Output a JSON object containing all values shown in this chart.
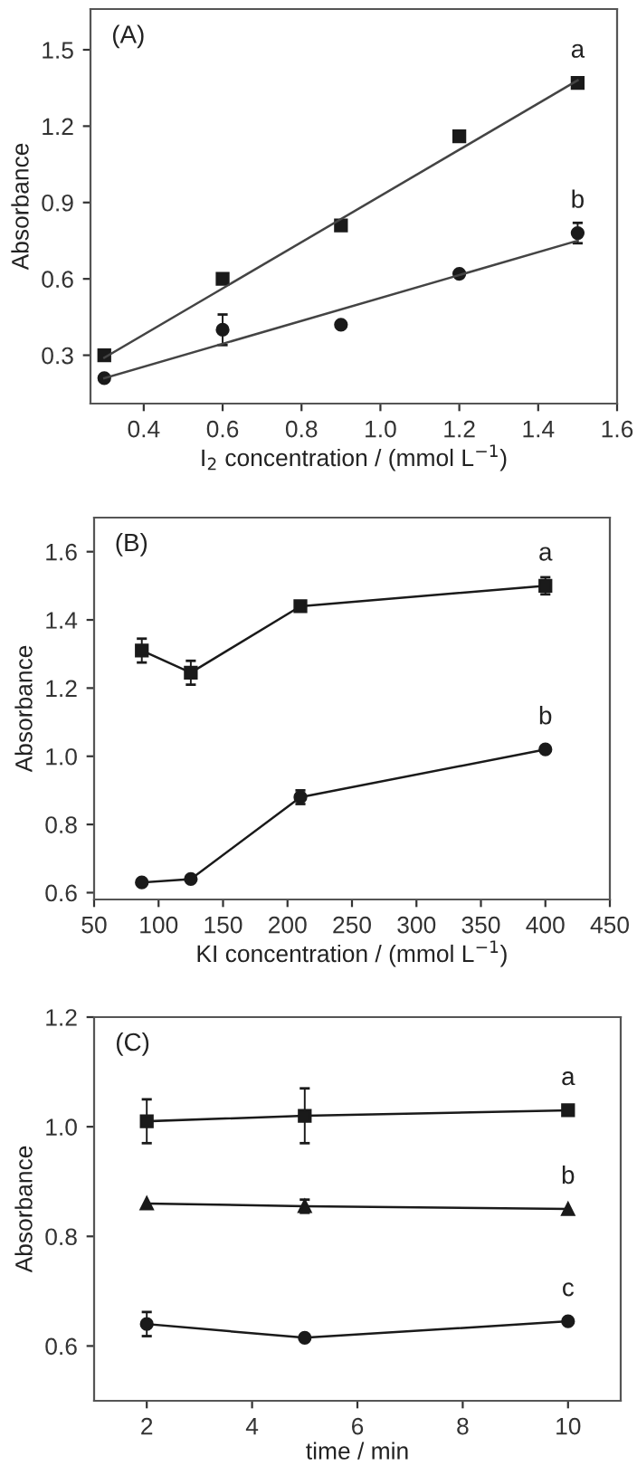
{
  "chart_data": [
    {
      "type": "scatter",
      "annotations": [
        "(A)"
      ],
      "xlabel": "I$_{2}$ concentration / (mmol L$^{−1}$)",
      "ylabel": "Absorbance",
      "xlim": [
        0.265,
        1.6
      ],
      "ylim": [
        0.11,
        1.66
      ],
      "xticks": [
        0.4,
        0.6,
        0.8,
        {
          "value": 1.0,
          "label": "1.0"
        },
        1.2,
        1.4,
        1.6
      ],
      "yticks": [
        0.3,
        0.6,
        0.9,
        1.2,
        1.5
      ],
      "series": [
        {
          "name": "a",
          "type": "scatter",
          "marker": "square",
          "color": "#1a1a1a",
          "x": [
            0.3,
            0.6,
            0.9,
            1.2,
            1.5
          ],
          "values": [
            0.3,
            0.6,
            0.81,
            1.16,
            1.37
          ],
          "errors": [
            null,
            0.01,
            null,
            null,
            null
          ]
        },
        {
          "name": "b",
          "type": "scatter",
          "marker": "circle",
          "color": "#1a1a1a",
          "x": [
            0.3,
            0.6,
            0.9,
            1.2,
            1.5
          ],
          "values": [
            0.21,
            0.4,
            0.42,
            0.62,
            0.78
          ],
          "errors": [
            null,
            0.06,
            null,
            null,
            0.04
          ]
        },
        {
          "type": "line",
          "marker": "none",
          "color": "#444444",
          "x": [
            0.3,
            1.5
          ],
          "values": [
            0.29,
            1.38
          ]
        },
        {
          "type": "line",
          "marker": "none",
          "color": "#444444",
          "x": [
            0.3,
            1.5
          ],
          "values": [
            0.21,
            0.75
          ]
        }
      ]
    },
    {
      "type": "line",
      "annotations": [
        "(B)"
      ],
      "xlabel": "KI concentration / (mmol L$^{−1}$)",
      "ylabel": "Absorbance",
      "xlim": [
        50,
        450
      ],
      "ylim": [
        0.58,
        1.7
      ],
      "xticks": [
        50,
        100,
        150,
        200,
        250,
        300,
        350,
        400,
        450
      ],
      "yticks": [
        0.6,
        0.8,
        {
          "value": 1.0,
          "label": "1.0"
        },
        1.2,
        1.4,
        1.6
      ],
      "series": [
        {
          "name": "a",
          "marker": "square",
          "color": "#1a1a1a",
          "x": [
            87,
            125,
            210,
            400
          ],
          "values": [
            1.31,
            1.245,
            1.44,
            1.5
          ],
          "errors": [
            0.035,
            0.035,
            null,
            0.025
          ]
        },
        {
          "name": "b",
          "marker": "circle",
          "color": "#1a1a1a",
          "x": [
            87,
            125,
            210,
            400
          ],
          "values": [
            0.63,
            0.64,
            0.88,
            1.02
          ],
          "errors": [
            null,
            null,
            0.02,
            null
          ]
        }
      ]
    },
    {
      "type": "line",
      "annotations": [
        "(C)"
      ],
      "xlabel": "time / min",
      "ylabel": "Absorbance",
      "xlim": [
        1,
        11
      ],
      "ylim": [
        0.5,
        1.2
      ],
      "xticks": [
        2,
        4,
        6,
        8,
        10
      ],
      "yticks": [
        0.6,
        0.8,
        {
          "value": 1.0,
          "label": "1.0"
        },
        1.2
      ],
      "series": [
        {
          "name": "a",
          "marker": "square",
          "color": "#1a1a1a",
          "x": [
            2,
            5,
            10
          ],
          "values": [
            1.01,
            1.02,
            1.03
          ],
          "errors": [
            0.04,
            0.05,
            null
          ]
        },
        {
          "name": "b",
          "marker": "triangle",
          "color": "#1a1a1a",
          "x": [
            2,
            5,
            10
          ],
          "values": [
            0.86,
            0.855,
            0.85
          ],
          "errors": [
            null,
            0.012,
            null
          ]
        },
        {
          "name": "c",
          "marker": "circle",
          "color": "#1a1a1a",
          "x": [
            2,
            5,
            10
          ],
          "values": [
            0.64,
            0.615,
            0.645
          ],
          "errors": [
            0.022,
            null,
            null
          ]
        }
      ]
    }
  ]
}
